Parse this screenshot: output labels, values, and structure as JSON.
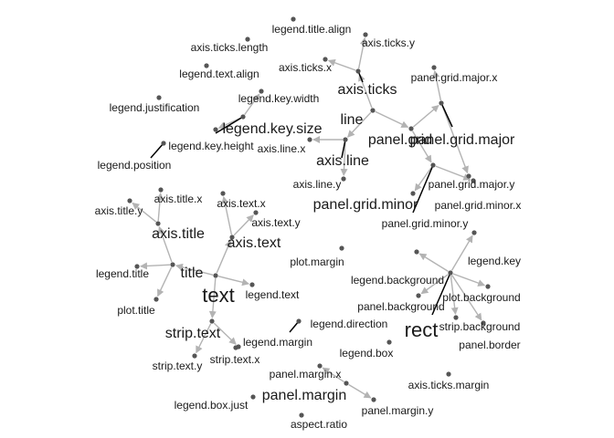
{
  "nodes": [
    {
      "id": "legend.title.align",
      "label": "legend.title.align",
      "size": "small"
    },
    {
      "id": "axis.ticks.length",
      "label": "axis.ticks.length",
      "size": "small"
    },
    {
      "id": "axis.ticks.y",
      "label": "axis.ticks.y",
      "size": "small"
    },
    {
      "id": "axis.ticks.x",
      "label": "axis.ticks.x",
      "size": "small"
    },
    {
      "id": "legend.text.align",
      "label": "legend.text.align",
      "size": "small"
    },
    {
      "id": "panel.grid.major.x",
      "label": "panel.grid.major.x",
      "size": "small"
    },
    {
      "id": "axis.ticks",
      "label": "axis.ticks",
      "size": "medium"
    },
    {
      "id": "legend.key.width",
      "label": "legend.key.width",
      "size": "small"
    },
    {
      "id": "legend.justification",
      "label": "legend.justification",
      "size": "small"
    },
    {
      "id": "line",
      "label": "line",
      "size": "medium"
    },
    {
      "id": "legend.key.size",
      "label": "legend.key.size",
      "size": "medium"
    },
    {
      "id": "panel.grid",
      "label": "panel.grid",
      "size": "medium"
    },
    {
      "id": "panel.grid.major",
      "label": "panel.grid.major",
      "size": "medium"
    },
    {
      "id": "legend.key.height",
      "label": "legend.key.height",
      "size": "small"
    },
    {
      "id": "axis.line.x",
      "label": "axis.line.x",
      "size": "small"
    },
    {
      "id": "axis.line",
      "label": "axis.line",
      "size": "medium"
    },
    {
      "id": "legend.position",
      "label": "legend.position",
      "size": "small"
    },
    {
      "id": "axis.line.y",
      "label": "axis.line.y",
      "size": "small"
    },
    {
      "id": "panel.grid.major.y",
      "label": "panel.grid.major.y",
      "size": "small"
    },
    {
      "id": "panel.grid.minor",
      "label": "panel.grid.minor",
      "size": "medium"
    },
    {
      "id": "panel.grid.minor.x",
      "label": "panel.grid.minor.x",
      "size": "small"
    },
    {
      "id": "panel.grid.minor.y",
      "label": "panel.grid.minor.y",
      "size": "small"
    },
    {
      "id": "axis.title.x",
      "label": "axis.title.x",
      "size": "small"
    },
    {
      "id": "axis.text.x",
      "label": "axis.text.x",
      "size": "small"
    },
    {
      "id": "axis.title.y",
      "label": "axis.title.y",
      "size": "small"
    },
    {
      "id": "axis.text.y",
      "label": "axis.text.y",
      "size": "small"
    },
    {
      "id": "axis.title",
      "label": "axis.title",
      "size": "medium"
    },
    {
      "id": "axis.text",
      "label": "axis.text",
      "size": "medium"
    },
    {
      "id": "plot.margin",
      "label": "plot.margin",
      "size": "small"
    },
    {
      "id": "legend.key",
      "label": "legend.key",
      "size": "small"
    },
    {
      "id": "legend.title",
      "label": "legend.title",
      "size": "small"
    },
    {
      "id": "title",
      "label": "title",
      "size": "medium"
    },
    {
      "id": "legend.background",
      "label": "legend.background",
      "size": "small"
    },
    {
      "id": "legend.text",
      "label": "legend.text",
      "size": "small"
    },
    {
      "id": "plot.background",
      "label": "plot.background",
      "size": "small"
    },
    {
      "id": "plot.title",
      "label": "plot.title",
      "size": "small"
    },
    {
      "id": "text",
      "label": "text",
      "size": "large"
    },
    {
      "id": "panel.background",
      "label": "panel.background",
      "size": "small"
    },
    {
      "id": "legend.direction",
      "label": "legend.direction",
      "size": "small"
    },
    {
      "id": "strip.background",
      "label": "strip.background",
      "size": "small"
    },
    {
      "id": "rect",
      "label": "rect",
      "size": "large"
    },
    {
      "id": "strip.text",
      "label": "strip.text",
      "size": "medium"
    },
    {
      "id": "legend.margin",
      "label": "legend.margin",
      "size": "small"
    },
    {
      "id": "panel.border",
      "label": "panel.border",
      "size": "small"
    },
    {
      "id": "legend.box",
      "label": "legend.box",
      "size": "small"
    },
    {
      "id": "strip.text.y",
      "label": "strip.text.y",
      "size": "small"
    },
    {
      "id": "strip.text.x",
      "label": "strip.text.x",
      "size": "small"
    },
    {
      "id": "panel.margin.x",
      "label": "panel.margin.x",
      "size": "small"
    },
    {
      "id": "axis.ticks.margin",
      "label": "axis.ticks.margin",
      "size": "small"
    },
    {
      "id": "panel.margin",
      "label": "panel.margin",
      "size": "medium"
    },
    {
      "id": "legend.box.just",
      "label": "legend.box.just",
      "size": "small"
    },
    {
      "id": "panel.margin.y",
      "label": "panel.margin.y",
      "size": "small"
    },
    {
      "id": "aspect.ratio",
      "label": "aspect.ratio",
      "size": "small"
    }
  ],
  "edges": [
    {
      "from": "line",
      "to": "axis.ticks",
      "kind": "arrow"
    },
    {
      "from": "axis.ticks",
      "to": "axis.ticks.x",
      "kind": "arrow"
    },
    {
      "from": "axis.ticks",
      "to": "axis.ticks.y",
      "kind": "arrow"
    },
    {
      "from": "line",
      "to": "axis.line",
      "kind": "arrow"
    },
    {
      "from": "axis.line",
      "to": "axis.line.x",
      "kind": "arrow"
    },
    {
      "from": "axis.line",
      "to": "axis.line.y",
      "kind": "arrow"
    },
    {
      "from": "line",
      "to": "panel.grid",
      "kind": "arrow"
    },
    {
      "from": "panel.grid",
      "to": "panel.grid.major",
      "kind": "arrow"
    },
    {
      "from": "panel.grid.major",
      "to": "panel.grid.major.x",
      "kind": "arrow"
    },
    {
      "from": "panel.grid.major",
      "to": "panel.grid.major.y",
      "kind": "arrow"
    },
    {
      "from": "panel.grid",
      "to": "panel.grid.minor",
      "kind": "arrow"
    },
    {
      "from": "panel.grid.minor",
      "to": "panel.grid.minor.x",
      "kind": "arrow"
    },
    {
      "from": "panel.grid.minor",
      "to": "panel.grid.minor.y",
      "kind": "arrow"
    },
    {
      "from": "legend.key.size",
      "to": "legend.key.width",
      "kind": "arrow"
    },
    {
      "from": "legend.key.size",
      "to": "legend.key.height",
      "kind": "arrow"
    },
    {
      "from": "text",
      "to": "title",
      "kind": "arrow"
    },
    {
      "from": "title",
      "to": "axis.title",
      "kind": "arrow"
    },
    {
      "from": "axis.title",
      "to": "axis.title.x",
      "kind": "arrow"
    },
    {
      "from": "axis.title",
      "to": "axis.title.y",
      "kind": "arrow"
    },
    {
      "from": "title",
      "to": "legend.title",
      "kind": "arrow"
    },
    {
      "from": "title",
      "to": "plot.title",
      "kind": "arrow"
    },
    {
      "from": "text",
      "to": "axis.text",
      "kind": "arrow"
    },
    {
      "from": "axis.text",
      "to": "axis.text.x",
      "kind": "arrow"
    },
    {
      "from": "axis.text",
      "to": "axis.text.y",
      "kind": "arrow"
    },
    {
      "from": "text",
      "to": "legend.text",
      "kind": "arrow"
    },
    {
      "from": "text",
      "to": "strip.text",
      "kind": "arrow"
    },
    {
      "from": "strip.text",
      "to": "strip.text.x",
      "kind": "arrow"
    },
    {
      "from": "strip.text",
      "to": "strip.text.y",
      "kind": "arrow"
    },
    {
      "from": "rect",
      "to": "legend.key",
      "kind": "arrow"
    },
    {
      "from": "rect",
      "to": "legend.background",
      "kind": "arrow"
    },
    {
      "from": "rect",
      "to": "plot.background",
      "kind": "arrow"
    },
    {
      "from": "rect",
      "to": "panel.background",
      "kind": "arrow"
    },
    {
      "from": "rect",
      "to": "strip.background",
      "kind": "arrow"
    },
    {
      "from": "rect",
      "to": "panel.border",
      "kind": "arrow"
    },
    {
      "from": "panel.margin",
      "to": "panel.margin.x",
      "kind": "arrow"
    },
    {
      "from": "panel.margin",
      "to": "panel.margin.y",
      "kind": "arrow"
    }
  ],
  "colors": {
    "edge": "#b3b3b3",
    "node": "#555555",
    "tick": "#000000",
    "text": "#1a1a1a"
  }
}
